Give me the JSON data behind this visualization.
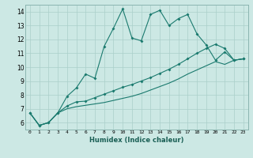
{
  "xlabel": "Humidex (Indice chaleur)",
  "background_color": "#cce8e4",
  "grid_color": "#aacfca",
  "line_color": "#1a7a6e",
  "xlim": [
    -0.5,
    23.5
  ],
  "ylim": [
    5.5,
    14.5
  ],
  "xticks": [
    0,
    1,
    2,
    3,
    4,
    5,
    6,
    7,
    8,
    9,
    10,
    11,
    12,
    13,
    14,
    15,
    16,
    17,
    18,
    19,
    20,
    21,
    22,
    23
  ],
  "yticks": [
    6,
    7,
    8,
    9,
    10,
    11,
    12,
    13,
    14
  ],
  "series1_x": [
    0,
    1,
    2,
    3,
    4,
    5,
    6,
    7,
    8,
    9,
    10,
    11,
    12,
    13,
    14,
    15,
    16,
    17,
    18,
    19,
    20,
    21,
    22,
    23
  ],
  "series1_y": [
    6.7,
    5.8,
    6.0,
    6.7,
    7.9,
    8.5,
    9.5,
    9.2,
    11.5,
    12.8,
    14.2,
    12.1,
    11.9,
    13.8,
    14.1,
    13.0,
    13.5,
    13.8,
    12.4,
    11.6,
    10.5,
    11.1,
    10.5,
    10.6
  ],
  "series2_x": [
    0,
    1,
    2,
    3,
    4,
    5,
    6,
    7,
    8,
    9,
    10,
    11,
    12,
    13,
    14,
    15,
    16,
    17,
    18,
    19,
    20,
    21,
    22,
    23
  ],
  "series2_y": [
    6.7,
    5.8,
    6.0,
    6.7,
    7.2,
    7.5,
    7.55,
    7.8,
    8.05,
    8.3,
    8.55,
    8.75,
    9.0,
    9.25,
    9.55,
    9.85,
    10.2,
    10.6,
    11.0,
    11.35,
    11.65,
    11.35,
    10.5,
    10.6
  ],
  "series3_x": [
    0,
    1,
    2,
    3,
    4,
    5,
    6,
    7,
    8,
    9,
    10,
    11,
    12,
    13,
    14,
    15,
    16,
    17,
    18,
    19,
    20,
    21,
    22,
    23
  ],
  "series3_y": [
    6.7,
    5.8,
    6.0,
    6.7,
    7.0,
    7.15,
    7.25,
    7.35,
    7.45,
    7.6,
    7.75,
    7.9,
    8.1,
    8.35,
    8.6,
    8.85,
    9.15,
    9.5,
    9.8,
    10.1,
    10.4,
    10.2,
    10.5,
    10.6
  ]
}
